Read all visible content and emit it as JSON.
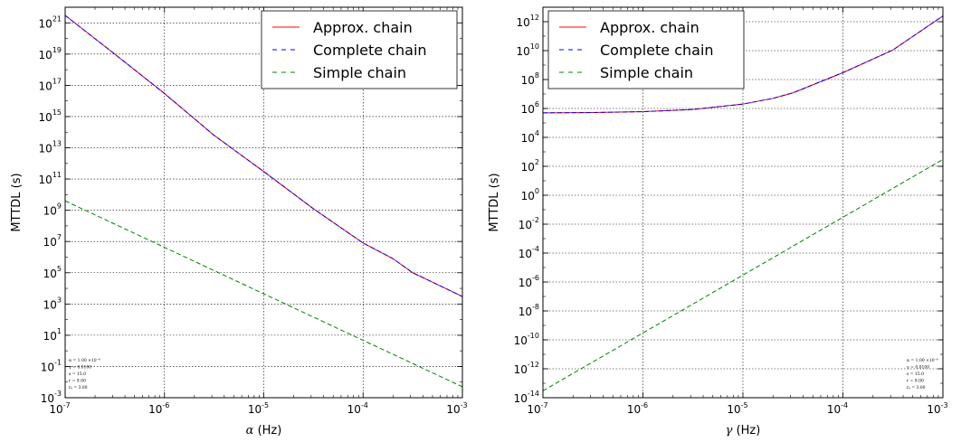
{
  "chart_data": [
    {
      "type": "line",
      "xscale": "log",
      "yscale": "log",
      "xlim": [
        1e-07,
        0.001
      ],
      "ylim": [
        0.001,
        1e+22
      ],
      "xlabel_symbol": "α",
      "xlabel_unit": " (Hz)",
      "ylabel": "MTTDL (s)",
      "grid": true,
      "legend_position": "top-right",
      "x_tick_labels": [
        {
          "base": "10",
          "exp": "-7"
        },
        {
          "base": "10",
          "exp": "-6"
        },
        {
          "base": "10",
          "exp": "-5"
        },
        {
          "base": "10",
          "exp": "-4"
        },
        {
          "base": "10",
          "exp": "-3"
        }
      ],
      "y_tick_labels": [
        {
          "base": "10",
          "exp": "-3"
        },
        {
          "base": "10",
          "exp": "-1"
        },
        {
          "base": "10",
          "exp": "1"
        },
        {
          "base": "10",
          "exp": "3"
        },
        {
          "base": "10",
          "exp": "5"
        },
        {
          "base": "10",
          "exp": "7"
        },
        {
          "base": "10",
          "exp": "9"
        },
        {
          "base": "10",
          "exp": "11"
        },
        {
          "base": "10",
          "exp": "13"
        },
        {
          "base": "10",
          "exp": "15"
        },
        {
          "base": "10",
          "exp": "17"
        },
        {
          "base": "10",
          "exp": "19"
        },
        {
          "base": "10",
          "exp": "21"
        }
      ],
      "params": [
        "α = 1.00 ×10⁻⁶",
        "γ = 0.0100",
        "s = 15.0",
        "r = 9.00",
        "rₐ = 3.00"
      ],
      "series": [
        {
          "name": "Approx. chain",
          "color": "#ff0000",
          "style": "solid",
          "x": [
            1e-07,
            3.16e-07,
            1e-06,
            3.16e-06,
            1e-05,
            3.16e-05,
            0.0001,
            0.0002,
            0.000316,
            0.0005,
            0.001
          ],
          "y": [
            3e+21,
            1e+19,
            3e+16,
            63000000000000.0,
            300000000000.0,
            1260000000.0,
            8000000.0,
            800000.0,
            100000.0,
            25000.0,
            3000.0
          ]
        },
        {
          "name": "Complete chain",
          "color": "#0000ff",
          "style": "dashed",
          "x": [
            1e-07,
            3.16e-07,
            1e-06,
            3.16e-06,
            1e-05,
            3.16e-05,
            0.0001,
            0.0002,
            0.000316,
            0.0005,
            0.001
          ],
          "y": [
            3e+21,
            1e+19,
            3e+16,
            63000000000000.0,
            300000000000.0,
            1260000000.0,
            8000000.0,
            800000.0,
            100000.0,
            25000.0,
            3000.0
          ]
        },
        {
          "name": "Simple chain",
          "color": "#008000",
          "style": "dashed",
          "x": [
            1e-07,
            0.001
          ],
          "y": [
            4000000000.0,
            0.005
          ]
        }
      ]
    },
    {
      "type": "line",
      "xscale": "log",
      "yscale": "log",
      "xlim": [
        1e-07,
        0.001
      ],
      "ylim": [
        1e-14,
        10000000000000.0
      ],
      "xlabel_symbol": "γ",
      "xlabel_unit": " (Hz)",
      "ylabel": "MTTDL (s)",
      "grid": true,
      "legend_position": "top-left",
      "x_tick_labels": [
        {
          "base": "10",
          "exp": "-7"
        },
        {
          "base": "10",
          "exp": "-6"
        },
        {
          "base": "10",
          "exp": "-5"
        },
        {
          "base": "10",
          "exp": "-4"
        },
        {
          "base": "10",
          "exp": "-3"
        }
      ],
      "y_tick_labels": [
        {
          "base": "10",
          "exp": "-14"
        },
        {
          "base": "10",
          "exp": "-12"
        },
        {
          "base": "10",
          "exp": "-10"
        },
        {
          "base": "10",
          "exp": "-8"
        },
        {
          "base": "10",
          "exp": "-6"
        },
        {
          "base": "10",
          "exp": "-4"
        },
        {
          "base": "10",
          "exp": "-2"
        },
        {
          "base": "10",
          "exp": "0"
        },
        {
          "base": "10",
          "exp": "2"
        },
        {
          "base": "10",
          "exp": "4"
        },
        {
          "base": "10",
          "exp": "6"
        },
        {
          "base": "10",
          "exp": "8"
        },
        {
          "base": "10",
          "exp": "10"
        },
        {
          "base": "10",
          "exp": "12"
        }
      ],
      "params": [
        "α = 1.00 ×10⁻⁶",
        "γ = 0.0100",
        "s = 15.0",
        "r = 9.00",
        "rₐ = 3.00"
      ],
      "series": [
        {
          "name": "Approx. chain",
          "color": "#ff0000",
          "style": "solid",
          "x": [
            1e-07,
            3.16e-07,
            1e-06,
            3.16e-06,
            1e-05,
            2e-05,
            3.16e-05,
            0.0001,
            0.000316,
            0.001
          ],
          "y": [
            500000.0,
            520000.0,
            600000.0,
            850000.0,
            2000000.0,
            5000000.0,
            12000000.0,
            300000000.0,
            11000000000.0,
            2500000000000.0
          ]
        },
        {
          "name": "Complete chain",
          "color": "#0000ff",
          "style": "dashed",
          "x": [
            1e-07,
            3.16e-07,
            1e-06,
            3.16e-06,
            1e-05,
            2e-05,
            3.16e-05,
            0.0001,
            0.000316,
            0.001
          ],
          "y": [
            500000.0,
            520000.0,
            600000.0,
            850000.0,
            2000000.0,
            5000000.0,
            12000000.0,
            300000000.0,
            11000000000.0,
            2500000000000.0
          ]
        },
        {
          "name": "Simple chain",
          "color": "#008000",
          "style": "dashed",
          "x": [
            1e-07,
            0.001
          ],
          "y": [
            3e-14,
            300.0
          ]
        }
      ]
    }
  ]
}
